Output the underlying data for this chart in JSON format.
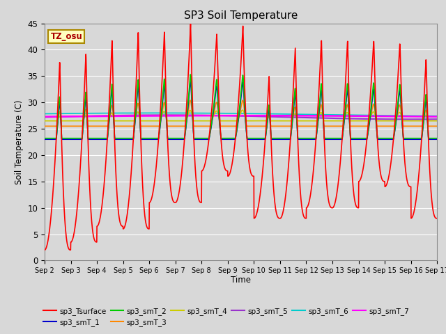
{
  "title": "SP3 Soil Temperature",
  "xlabel": "Time",
  "ylabel": "Soil Temperature (C)",
  "ylim": [
    0,
    45
  ],
  "yticks": [
    0,
    5,
    10,
    15,
    20,
    25,
    30,
    35,
    40,
    45
  ],
  "xtick_labels": [
    "Sep 2",
    "Sep 3",
    "Sep 4",
    "Sep 5",
    "Sep 6",
    "Sep 7",
    "Sep 8",
    "Sep 9",
    "Sep 10",
    "Sep 11",
    "Sep 12",
    "Sep 13",
    "Sep 14",
    "Sep 15",
    "Sep 16",
    "Sep 17"
  ],
  "tz_label": "TZ_osu",
  "series_colors": {
    "sp3_Tsurface": "#FF0000",
    "sp3_smT_1": "#0000CC",
    "sp3_smT_2": "#00CC00",
    "sp3_smT_3": "#FF8800",
    "sp3_smT_4": "#CCCC00",
    "sp3_smT_5": "#9933CC",
    "sp3_smT_6": "#00CCCC",
    "sp3_smT_7": "#FF00FF"
  },
  "background_color": "#D8D8D8",
  "plot_bg_color": "#D8D8D8",
  "grid_color": "#FFFFFF",
  "n_days": 15,
  "pts_per_day": 144
}
